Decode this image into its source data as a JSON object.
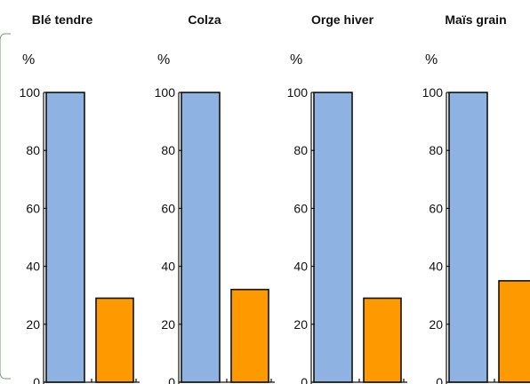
{
  "chart_data": [
    {
      "type": "bar",
      "title": "Blé tendre",
      "ylabel": "%",
      "ylim": [
        0,
        100
      ],
      "yticks": [
        "0",
        "20",
        "40",
        "60",
        "80",
        "100"
      ],
      "values": [
        100,
        29
      ],
      "colors": [
        "#8eb3e3",
        "#ff9900"
      ],
      "grid": false
    },
    {
      "type": "bar",
      "title": "Colza",
      "ylabel": "%",
      "ylim": [
        0,
        100
      ],
      "yticks": [
        "0",
        "20",
        "40",
        "60",
        "80",
        "100"
      ],
      "values": [
        100,
        32
      ],
      "colors": [
        "#8eb3e3",
        "#ff9900"
      ],
      "grid": false
    },
    {
      "type": "bar",
      "title": "Orge hiver",
      "ylabel": "%",
      "ylim": [
        0,
        100
      ],
      "yticks": [
        "0",
        "20",
        "40",
        "60",
        "80",
        "100"
      ],
      "values": [
        100,
        29
      ],
      "colors": [
        "#8eb3e3",
        "#ff9900"
      ],
      "grid": false
    },
    {
      "type": "bar",
      "title": "Maïs grain",
      "ylabel": "%",
      "ylim": [
        0,
        100
      ],
      "yticks": [
        "0",
        "20",
        "40",
        "60",
        "80",
        "100"
      ],
      "values": [
        100,
        35
      ],
      "colors": [
        "#8eb3e3",
        "#ff9900"
      ],
      "grid": false
    }
  ]
}
